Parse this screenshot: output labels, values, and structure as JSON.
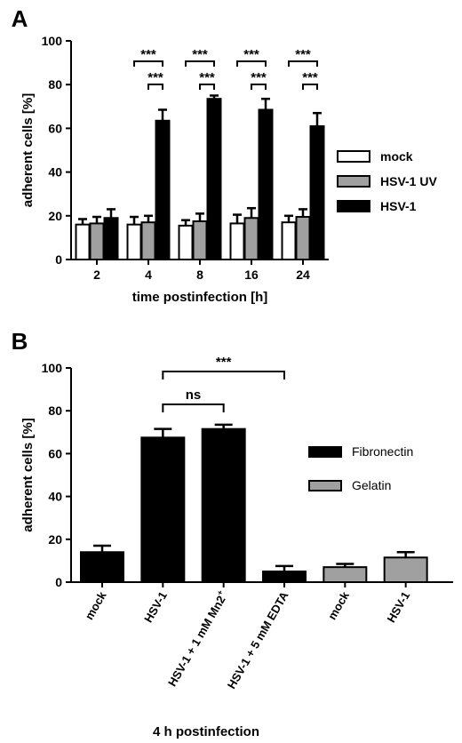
{
  "chart_data": [
    {
      "type": "bar",
      "panel_label": "A",
      "xlabel": "time postinfection [h]",
      "ylabel": "adherent cells [%]",
      "ylim": [
        0,
        100
      ],
      "yticks": [
        0,
        20,
        40,
        60,
        80,
        100
      ],
      "categories": [
        "2",
        "4",
        "8",
        "16",
        "24"
      ],
      "series": [
        {
          "name": "mock",
          "color": "#ffffff",
          "values": [
            16,
            16,
            15.5,
            16.5,
            17
          ],
          "errors": [
            2.5,
            3.5,
            2.5,
            4,
            3
          ]
        },
        {
          "name": "HSV-1 UV",
          "color": "#a0a0a0",
          "values": [
            16.5,
            17,
            17.5,
            19,
            19.5
          ],
          "errors": [
            3,
            3,
            3.5,
            4.5,
            3.5
          ]
        },
        {
          "name": "HSV-1",
          "color": "#000000",
          "values": [
            19,
            63.5,
            73.5,
            68.5,
            61
          ],
          "errors": [
            4,
            5,
            1.5,
            5,
            6
          ]
        }
      ],
      "legend_position": "right",
      "significance": [
        {
          "category": "4",
          "from": "mock",
          "to": "HSV-1",
          "label": "***"
        },
        {
          "category": "4",
          "from": "HSV-1 UV",
          "to": "HSV-1",
          "label": "***"
        },
        {
          "category": "8",
          "from": "mock",
          "to": "HSV-1",
          "label": "***"
        },
        {
          "category": "8",
          "from": "HSV-1 UV",
          "to": "HSV-1",
          "label": "***"
        },
        {
          "category": "16",
          "from": "mock",
          "to": "HSV-1",
          "label": "***"
        },
        {
          "category": "16",
          "from": "HSV-1 UV",
          "to": "HSV-1",
          "label": "***"
        },
        {
          "category": "24",
          "from": "mock",
          "to": "HSV-1",
          "label": "***"
        },
        {
          "category": "24",
          "from": "HSV-1 UV",
          "to": "HSV-1",
          "label": "***"
        }
      ]
    },
    {
      "type": "bar",
      "panel_label": "B",
      "xlabel": "4 h postinfection",
      "ylabel": "adherent cells [%]",
      "ylim": [
        0,
        100
      ],
      "yticks": [
        0,
        20,
        40,
        60,
        80,
        100
      ],
      "categories": [
        "mock",
        "HSV-1",
        "HSV-1 + 1 mM Mn2+",
        "HSV-1 + 5 mM EDTA",
        "mock",
        "HSV-1"
      ],
      "values": [
        14,
        67.5,
        71.5,
        5,
        7,
        11.5
      ],
      "errors": [
        3,
        4,
        2,
        2.5,
        1.5,
        2.5
      ],
      "groups": [
        "Fibronectin",
        "Fibronectin",
        "Fibronectin",
        "Fibronectin",
        "Gelatin",
        "Gelatin"
      ],
      "legend": [
        {
          "name": "Fibronectin",
          "color": "#000000"
        },
        {
          "name": "Gelatin",
          "color": "#a0a0a0"
        }
      ],
      "legend_position": "right",
      "significance": [
        {
          "from": 1,
          "to": 2,
          "label": "ns"
        },
        {
          "from": 1,
          "to": 3,
          "label": "***"
        }
      ]
    }
  ]
}
